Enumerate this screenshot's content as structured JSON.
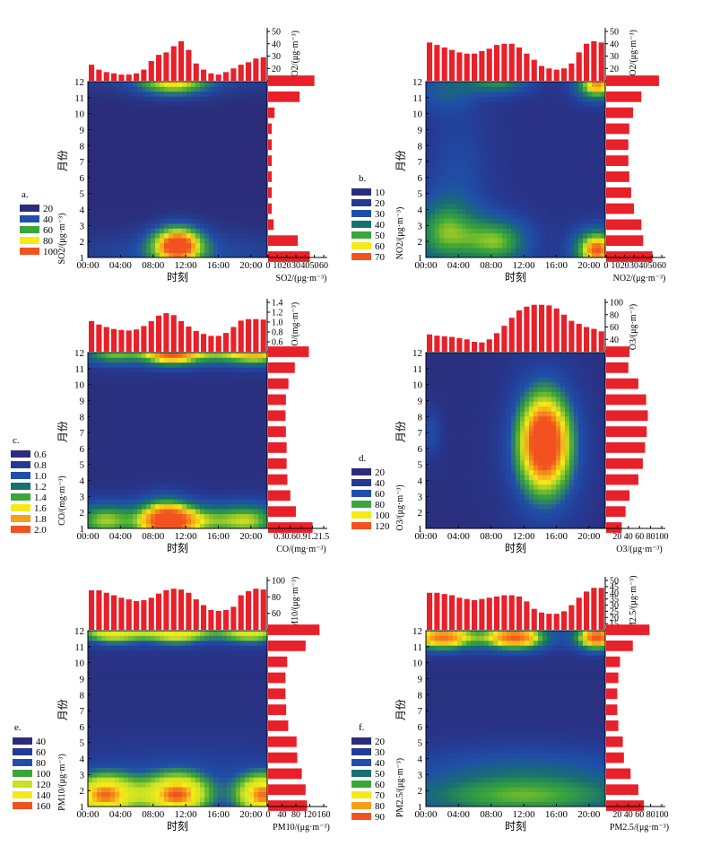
{
  "figure": {
    "x_tick_labels": [
      "00:00",
      "04:00",
      "08:00",
      "12:00",
      "16:00",
      "20:00"
    ],
    "y_tick_labels": [
      "1",
      "2",
      "3",
      "4",
      "5",
      "6",
      "7",
      "8",
      "9",
      "10",
      "11",
      "12"
    ],
    "x_label": "时刻",
    "y_label": "月份"
  },
  "chart_data": [
    {
      "id": "a",
      "panel_label": "a.",
      "type": "heatmap",
      "pollutant": "SO2",
      "xlabel": "时刻",
      "ylabel": "月份",
      "top_bar": {
        "axis_label": "SO2/(μg·m⁻³)",
        "ticks": [
          "10",
          "20",
          "30",
          "40",
          "50"
        ],
        "ylim": [
          10,
          50
        ],
        "values": [
          23,
          19,
          17,
          16,
          15,
          15,
          16,
          19,
          26,
          31,
          33,
          38,
          42,
          35,
          24,
          19,
          16,
          15,
          17,
          20,
          23,
          25,
          28,
          29
        ]
      },
      "right_bar": {
        "axis_label": "SO2/(μg·m⁻³)",
        "ticks": [
          "0",
          "10",
          "20",
          "30",
          "40",
          "50",
          "60"
        ],
        "xlim": [
          0,
          60
        ],
        "values": [
          45,
          32,
          6,
          4,
          4,
          4,
          4,
          4,
          4,
          7,
          34,
          50
        ]
      },
      "legend": {
        "axis_label": "SO2/(μg·m⁻³)",
        "levels": [
          "20",
          "40",
          "60",
          "80",
          "100"
        ],
        "colors": [
          "#2b2d7a",
          "#1f4fa8",
          "#3aa63a",
          "#f5ea18",
          "#f2521f"
        ]
      },
      "peaks": [
        {
          "hour": 11,
          "month": 1.8,
          "value": 105,
          "sx": 2.2,
          "sy": 0.85
        },
        {
          "hour": 10.5,
          "month": 12,
          "value": 72,
          "sx": 3,
          "sy": 0.6
        },
        {
          "hour": 12,
          "month": 1.3,
          "value": 30,
          "sx": 12,
          "sy": 1
        },
        {
          "hour": 12,
          "month": 12.2,
          "value": 25,
          "sx": 12,
          "sy": 0.7
        }
      ],
      "background": 10,
      "vmin": 10,
      "vmax": 105
    },
    {
      "id": "b",
      "panel_label": "b.",
      "type": "heatmap",
      "pollutant": "NO2",
      "xlabel": "时刻",
      "ylabel": "月份",
      "top_bar": {
        "axis_label": "NO2/(μg·m⁻³)",
        "ticks": [
          "10",
          "20",
          "30",
          "40",
          "50"
        ],
        "ylim": [
          10,
          50
        ],
        "values": [
          41,
          39,
          37,
          35,
          33,
          32,
          32,
          34,
          36,
          39,
          40,
          40,
          37,
          32,
          27,
          22,
          20,
          19,
          20,
          24,
          33,
          40,
          42,
          41
        ]
      },
      "right_bar": {
        "axis_label": "NO2/(μg·m⁻³)",
        "ticks": [
          "0",
          "10",
          "20",
          "30",
          "40",
          "50",
          "60"
        ],
        "xlim": [
          0,
          60
        ],
        "values": [
          50,
          40,
          38,
          30,
          27,
          25,
          24,
          24,
          25,
          29,
          38,
          57
        ]
      },
      "legend": {
        "axis_label": "NO2/(μg·m⁻³)",
        "levels": [
          "10",
          "20",
          "30",
          "40",
          "50",
          "60",
          "70"
        ],
        "colors": [
          "#2b2d7a",
          "#253a93",
          "#1f4fa8",
          "#18706f",
          "#3aa63a",
          "#f5ea18",
          "#f2521f"
        ]
      },
      "peaks": [
        {
          "hour": 21,
          "month": 1.5,
          "value": 72,
          "sx": 2.2,
          "sy": 1
        },
        {
          "hour": 21,
          "month": 11.8,
          "value": 68,
          "sx": 2,
          "sy": 0.7
        },
        {
          "hour": 9,
          "month": 2,
          "value": 52,
          "sx": 3,
          "sy": 1.2
        },
        {
          "hour": 2,
          "month": 2.5,
          "value": 48,
          "sx": 3,
          "sy": 1.6
        },
        {
          "hour": 9,
          "month": 12,
          "value": 45,
          "sx": 3,
          "sy": 0.6
        },
        {
          "hour": 2,
          "month": 11.5,
          "value": 32,
          "sx": 3,
          "sy": 1
        },
        {
          "hour": 4,
          "month": 6.5,
          "value": 28,
          "sx": 3,
          "sy": 3
        }
      ],
      "background": 14,
      "vmin": 10,
      "vmax": 72
    },
    {
      "id": "c",
      "panel_label": "c.",
      "type": "heatmap",
      "pollutant": "CO",
      "xlabel": "时刻",
      "ylabel": "月份",
      "top_bar": {
        "axis_label": "CO/(mg·m⁻³)",
        "ticks": [
          "0.4",
          "0.6",
          "0.8",
          "1.0",
          "1.2",
          "1.4"
        ],
        "ylim": [
          0.4,
          1.4
        ],
        "values": [
          1.02,
          0.95,
          0.9,
          0.86,
          0.84,
          0.83,
          0.85,
          0.92,
          1.02,
          1.13,
          1.18,
          1.14,
          1.02,
          0.91,
          0.82,
          0.76,
          0.72,
          0.72,
          0.78,
          0.9,
          1.03,
          1.06,
          1.06,
          1.05
        ]
      },
      "right_bar": {
        "axis_label": "CO/(mg·m⁻³)",
        "ticks": [
          "0.3",
          "0.6",
          "0.9",
          "1.2",
          "1.5"
        ],
        "xlim": [
          0,
          1.5
        ],
        "values": [
          1.2,
          0.75,
          0.6,
          0.52,
          0.5,
          0.5,
          0.48,
          0.47,
          0.48,
          0.55,
          0.72,
          1.1
        ]
      },
      "legend": {
        "axis_label": "CO/(mg·m⁻³)",
        "levels": [
          "0.6",
          "0.8",
          "1.0",
          "1.2",
          "1.4",
          "1.6",
          "1.8",
          "2.0"
        ],
        "colors": [
          "#2b2d7a",
          "#253a93",
          "#1f4fa8",
          "#18706f",
          "#3aa63a",
          "#f5ea18",
          "#f5a01a",
          "#f2521f"
        ]
      },
      "peaks": [
        {
          "hour": 9.5,
          "month": 1.5,
          "value": 2.05,
          "sx": 2.5,
          "sy": 1
        },
        {
          "hour": 10,
          "month": 12,
          "value": 1.85,
          "sx": 2.5,
          "sy": 0.6
        },
        {
          "hour": 21,
          "month": 12,
          "value": 1.7,
          "sx": 3,
          "sy": 0.6
        },
        {
          "hour": 2,
          "month": 1.5,
          "value": 1.5,
          "sx": 3,
          "sy": 0.9
        },
        {
          "hour": 20,
          "month": 1.5,
          "value": 1.45,
          "sx": 3,
          "sy": 0.9
        },
        {
          "hour": 3,
          "month": 12,
          "value": 1.45,
          "sx": 3,
          "sy": 0.6
        },
        {
          "hour": 14,
          "month": 1.5,
          "value": 1.2,
          "sx": 3,
          "sy": 0.8
        },
        {
          "hour": 15,
          "month": 12,
          "value": 1.2,
          "sx": 3,
          "sy": 0.6
        }
      ],
      "background": 0.55,
      "vmin": 0.5,
      "vmax": 2.05
    },
    {
      "id": "d",
      "panel_label": "d.",
      "type": "heatmap",
      "pollutant": "O3",
      "xlabel": "时刻",
      "ylabel": "月份",
      "top_bar": {
        "axis_label": "O3/(μg·m⁻³)",
        "ticks": [
          "20",
          "40",
          "60",
          "80",
          "100"
        ],
        "ylim": [
          20,
          100
        ],
        "values": [
          48,
          46,
          45,
          44,
          42,
          40,
          36,
          35,
          40,
          50,
          62,
          75,
          87,
          93,
          96,
          96,
          95,
          90,
          80,
          70,
          65,
          60,
          57,
          53
        ]
      },
      "right_bar": {
        "axis_label": "O3/(μg·m⁻³)",
        "ticks": [
          "20",
          "40",
          "60",
          "80",
          "100"
        ],
        "xlim": [
          0,
          100
        ],
        "values": [
          28,
          35,
          42,
          58,
          66,
          70,
          73,
          75,
          72,
          58,
          40,
          42
        ]
      },
      "legend": {
        "axis_label": "O3/(μg·m⁻³)",
        "levels": [
          "20",
          "40",
          "60",
          "80",
          "100",
          "120"
        ],
        "colors": [
          "#2b2d7a",
          "#253a93",
          "#1f4fa8",
          "#3aa63a",
          "#f5ea18",
          "#f2521f"
        ]
      },
      "peaks": [
        {
          "hour": 14.5,
          "month": 6.5,
          "value": 135,
          "sx": 2.8,
          "sy": 2.7
        },
        {
          "hour": 15,
          "month": 5,
          "value": 40,
          "sx": 4,
          "sy": 3.5
        },
        {
          "hour": 0.6,
          "month": 7,
          "value": 60,
          "sx": 1,
          "sy": 1.2
        },
        {
          "hour": 3,
          "month": 6.5,
          "value": 20,
          "sx": 3,
          "sy": 2.5
        }
      ],
      "background": 20,
      "vmin": 15,
      "vmax": 135
    },
    {
      "id": "e",
      "panel_label": "e.",
      "type": "heatmap",
      "pollutant": "PM10",
      "xlabel": "时刻",
      "ylabel": "月份",
      "top_bar": {
        "axis_label": "PM10/(μg·m⁻³)",
        "ticks": [
          "40",
          "60",
          "80",
          "100"
        ],
        "ylim": [
          40,
          100
        ],
        "values": [
          88,
          88,
          85,
          82,
          79,
          77,
          75,
          76,
          79,
          84,
          88,
          90,
          89,
          85,
          77,
          70,
          64,
          63,
          64,
          68,
          82,
          87,
          90,
          89
        ]
      },
      "right_bar": {
        "axis_label": "PM10/(μg·m⁻³)",
        "ticks": [
          "0",
          "40",
          "80",
          "120",
          "160"
        ],
        "xlim": [
          0,
          160
        ],
        "values": [
          112,
          108,
          97,
          84,
          82,
          58,
          52,
          50,
          50,
          55,
          108,
          148
        ]
      },
      "legend": {
        "axis_label": "PM10/(μg·m⁻³)",
        "levels": [
          "40",
          "60",
          "80",
          "100",
          "120",
          "140",
          "160"
        ],
        "colors": [
          "#2b2d7a",
          "#253a93",
          "#1f4fa8",
          "#3aa63a",
          "#c9e224",
          "#f5ea18",
          "#f2521f"
        ]
      },
      "peaks": [
        {
          "hour": 2,
          "month": 1.7,
          "value": 150,
          "sx": 3,
          "sy": 1
        },
        {
          "hour": 11,
          "month": 1.7,
          "value": 150,
          "sx": 3,
          "sy": 1
        },
        {
          "hour": 21.5,
          "month": 1.7,
          "value": 150,
          "sx": 2.5,
          "sy": 1
        },
        {
          "hour": 3,
          "month": 12,
          "value": 135,
          "sx": 3,
          "sy": 0.6
        },
        {
          "hour": 11,
          "month": 12,
          "value": 140,
          "sx": 3,
          "sy": 0.6
        },
        {
          "hour": 20,
          "month": 12,
          "value": 130,
          "sx": 3,
          "sy": 0.6
        },
        {
          "hour": 12,
          "month": 3.5,
          "value": 60,
          "sx": 12,
          "sy": 1.5
        }
      ],
      "background": 42,
      "vmin": 35,
      "vmax": 160
    },
    {
      "id": "f",
      "panel_label": "f.",
      "type": "heatmap",
      "pollutant": "PM2.5",
      "xlabel": "时刻",
      "ylabel": "月份",
      "top_bar": {
        "axis_label": "PM2.5/(μg·m⁻³)",
        "ticks": [
          "10",
          "15",
          "20",
          "25",
          "30",
          "35",
          "40",
          "45",
          "50"
        ],
        "ylim": [
          10,
          50
        ],
        "values": [
          40,
          40,
          39,
          38,
          36,
          35,
          34,
          35,
          36,
          37,
          38,
          38,
          37,
          33,
          27,
          24,
          23,
          23,
          25,
          30,
          36,
          41,
          44,
          44
        ]
      },
      "right_bar": {
        "axis_label": "PM2.5/(μg·m⁻³)",
        "ticks": [
          "20",
          "40",
          "60",
          "80",
          "100"
        ],
        "xlim": [
          0,
          100
        ],
        "values": [
          68,
          58,
          44,
          32,
          30,
          22,
          20,
          20,
          22,
          25,
          48,
          78
        ]
      },
      "legend": {
        "axis_label": "PM2.5/(μg·m⁻³)",
        "levels": [
          "20",
          "30",
          "40",
          "50",
          "60",
          "70",
          "80",
          "90"
        ],
        "colors": [
          "#2b2d7a",
          "#253a93",
          "#1f4fa8",
          "#18706f",
          "#3aa63a",
          "#f5ea18",
          "#f5a01a",
          "#f2521f"
        ]
      },
      "peaks": [
        {
          "hour": 2,
          "month": 11.6,
          "value": 85,
          "sx": 3,
          "sy": 0.6
        },
        {
          "hour": 11,
          "month": 11.6,
          "value": 88,
          "sx": 3,
          "sy": 0.6
        },
        {
          "hour": 21,
          "month": 11.6,
          "value": 90,
          "sx": 2,
          "sy": 0.6
        },
        {
          "hour": 12,
          "month": 1.5,
          "value": 55,
          "sx": 12,
          "sy": 1
        },
        {
          "hour": 12,
          "month": 3.5,
          "value": 38,
          "sx": 12,
          "sy": 1.2
        }
      ],
      "background": 18,
      "vmin": 15,
      "vmax": 90
    }
  ]
}
